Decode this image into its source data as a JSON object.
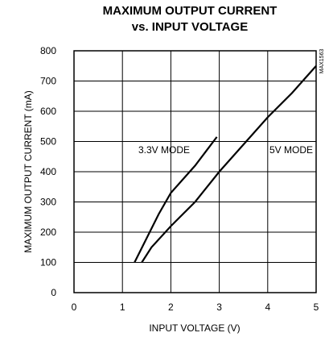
{
  "chart_data": {
    "type": "line",
    "title": [
      "MAXIMUM OUTPUT CURRENT",
      "vs. INPUT VOLTAGE"
    ],
    "x_label": "INPUT VOLTAGE (V)",
    "y_label": "MAXIMUM OUTPUT CURRENT (mA)",
    "figure_id": "MAX1563",
    "xlim": [
      0,
      5
    ],
    "xticks": [
      0,
      1,
      2,
      3,
      4,
      5
    ],
    "ylim": [
      0,
      800
    ],
    "yticks": [
      0,
      100,
      200,
      300,
      400,
      500,
      600,
      700,
      800
    ],
    "grid": true,
    "series": [
      {
        "name": "3.3V MODE",
        "color": "#000000",
        "x": [
          1.25,
          1.5,
          1.75,
          2,
          2.5,
          2.95
        ],
        "values": [
          100,
          180,
          260,
          330,
          420,
          515
        ]
      },
      {
        "name": "5V MODE",
        "color": "#000000",
        "x": [
          1.4,
          1.6,
          2,
          2.5,
          3,
          3.5,
          4,
          4.5,
          5
        ],
        "values": [
          100,
          150,
          220,
          300,
          400,
          490,
          580,
          660,
          750
        ]
      }
    ]
  }
}
